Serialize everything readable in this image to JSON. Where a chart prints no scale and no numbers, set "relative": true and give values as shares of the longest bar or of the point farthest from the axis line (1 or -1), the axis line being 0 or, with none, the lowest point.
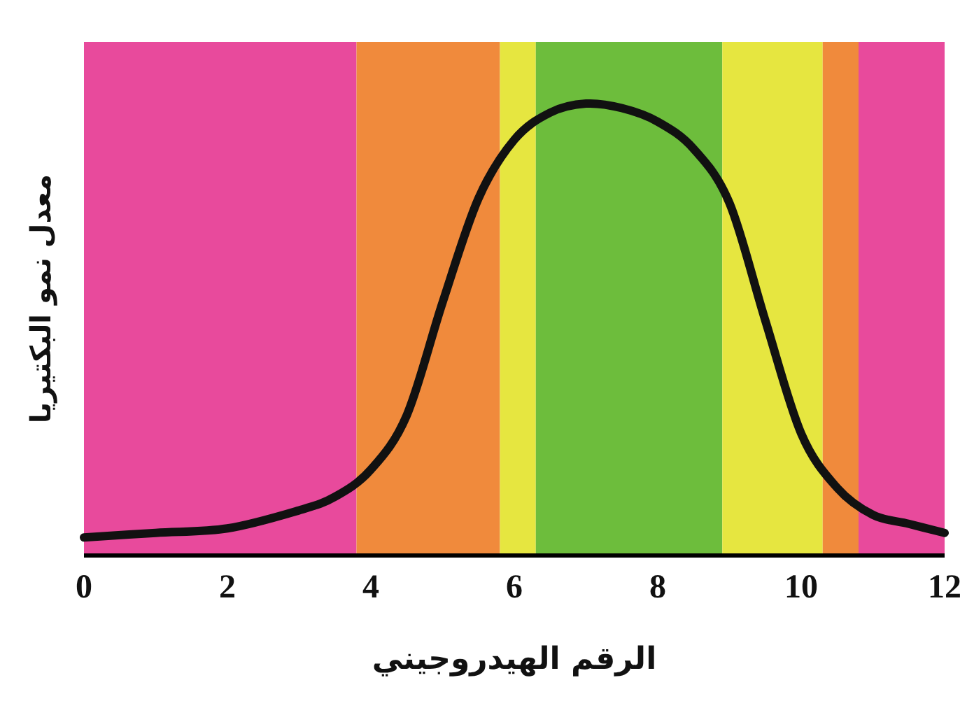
{
  "chart_data": {
    "type": "line",
    "xlabel": "الرقم الهيدروجيني",
    "ylabel": "معدل نمو البكتيريا",
    "relative": true,
    "xlim": [
      0,
      12
    ],
    "xticks": [
      0,
      2,
      4,
      6,
      8,
      10,
      12
    ],
    "bands": [
      {
        "axis": "x",
        "from": 0,
        "to": 3.8,
        "color": "#e84a9c"
      },
      {
        "axis": "x",
        "from": 3.8,
        "to": 5.8,
        "color": "#f08a3c"
      },
      {
        "axis": "x",
        "from": 5.8,
        "to": 6.3,
        "color": "#e6e640"
      },
      {
        "axis": "x",
        "from": 6.3,
        "to": 8.9,
        "color": "#6dbd3c"
      },
      {
        "axis": "x",
        "from": 8.9,
        "to": 10.3,
        "color": "#e6e640"
      },
      {
        "axis": "x",
        "from": 10.3,
        "to": 10.8,
        "color": "#f08a3c"
      },
      {
        "axis": "x",
        "from": 10.8,
        "to": 12,
        "color": "#e84a9c"
      }
    ],
    "x": [
      0,
      1,
      2,
      3,
      3.5,
      4,
      4.5,
      5,
      5.5,
      6,
      6.5,
      7,
      7.5,
      8,
      8.5,
      9,
      9.5,
      10,
      10.5,
      11,
      11.5,
      12
    ],
    "series": [
      {
        "color": "#111111",
        "values": [
          0.04,
          0.05,
          0.06,
          0.1,
          0.13,
          0.19,
          0.31,
          0.56,
          0.79,
          0.92,
          0.98,
          1,
          0.99,
          0.96,
          0.9,
          0.78,
          0.52,
          0.27,
          0.15,
          0.09,
          0.07,
          0.05
        ]
      }
    ]
  }
}
